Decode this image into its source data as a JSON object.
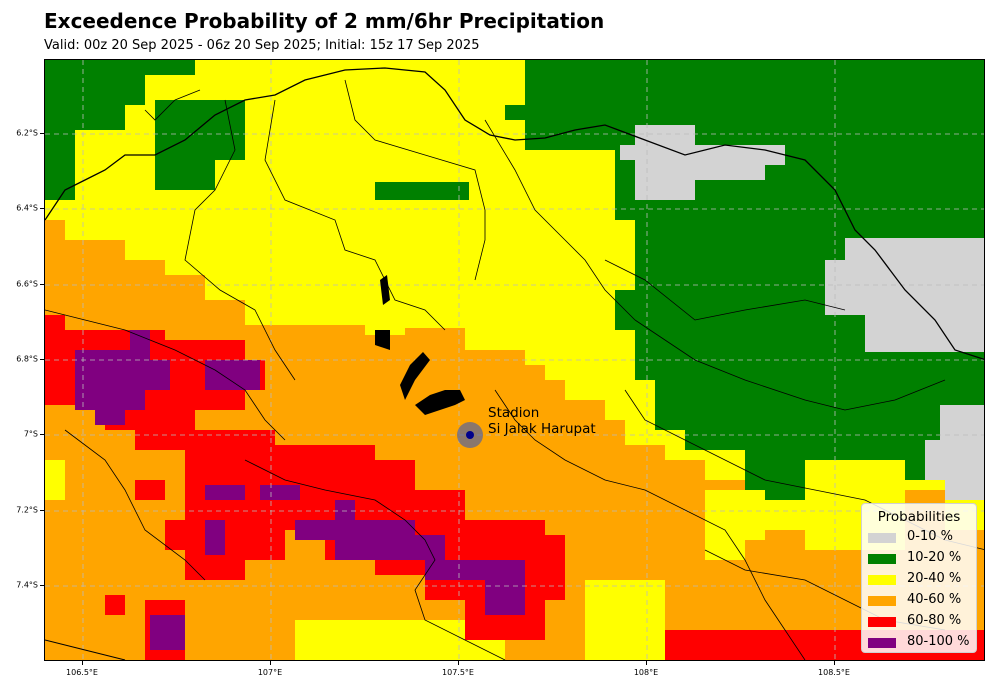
{
  "title": "Exceedence Probability of 2 mm/6hr Precipitation",
  "subtitle": "Valid: 00z 20 Sep 2025 - 06z 20 Sep 2025; Initial: 15z 17 Sep 2025",
  "axes": {
    "lat_ticks": [
      "6.2°S",
      "6.4°S",
      "6.6°S",
      "6.8°S",
      "7°S",
      "7.2°S",
      "7.4°S"
    ],
    "lon_ticks": [
      "106.5°E",
      "107°E",
      "107.5°E",
      "108°E",
      "108.5°E"
    ],
    "lat_values": [
      -6.2,
      -6.4,
      -6.6,
      -6.8,
      -7.0,
      -7.2,
      -7.4
    ],
    "lon_values": [
      106.5,
      107.0,
      107.5,
      108.0,
      108.5
    ],
    "lon_range": [
      106.4,
      108.9
    ],
    "lat_range": [
      -7.6,
      -6.0
    ],
    "grid": true
  },
  "station": {
    "name_line1": "Stadion",
    "name_line2": "Si Jalak Harupat",
    "lon": 107.53,
    "lat": -7.0
  },
  "legend": {
    "title": "Probabilities",
    "items": [
      {
        "label": "0-10 %",
        "color": "#d3d3d3"
      },
      {
        "label": "10-20 %",
        "color": "#008000"
      },
      {
        "label": "20-40 %",
        "color": "#ffff00"
      },
      {
        "label": "40-60 %",
        "color": "#ffa500"
      },
      {
        "label": "60-80 %",
        "color": "#ff0000"
      },
      {
        "label": "80-100 %",
        "color": "#800080"
      }
    ]
  }
}
